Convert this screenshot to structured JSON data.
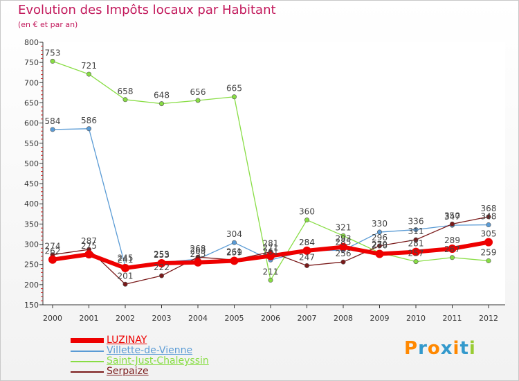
{
  "chart_data": {
    "type": "line",
    "title": "Evolution des Impôts locaux par Habitant",
    "subtitle": "(en € et par an)",
    "xlabel": "",
    "ylabel": "",
    "ylim": [
      150,
      800
    ],
    "yticks": [
      "150",
      "200",
      "250",
      "300",
      "350",
      "400",
      "450",
      "500",
      "550",
      "600",
      "650",
      "700",
      "750",
      "800"
    ],
    "categories": [
      "2000",
      "2001",
      "2002",
      "2003",
      "2004",
      "2005",
      "2006",
      "2007",
      "2008",
      "2009",
      "2010",
      "2011",
      "2012"
    ],
    "series": [
      {
        "name": "LUZINAY",
        "color": "#ee0000",
        "width": 6,
        "values": [
          262,
          275,
          241,
          253,
          255,
          259,
          271,
          284,
          293,
          276,
          281,
          289,
          305
        ],
        "labels": [
          "262",
          "275",
          "241",
          "253",
          "255",
          "259",
          "271",
          "284",
          "293",
          "276",
          "281",
          "289",
          "305"
        ]
      },
      {
        "name": "Villette-de-Vienne",
        "color": "#5a9bd5",
        "width": 1.3,
        "values": [
          584,
          586,
          245,
          255,
          263,
          304,
          261,
          284,
          285,
          330,
          336,
          347,
          348
        ],
        "labels": [
          "584",
          "586",
          "245",
          "255",
          "263",
          "304",
          "261",
          "284",
          "285",
          "330",
          "336",
          "347",
          "348"
        ]
      },
      {
        "name": "Saint-Just-Chaleyssin",
        "color": "#88dd44",
        "width": 1.3,
        "values": [
          753,
          721,
          658,
          648,
          656,
          665,
          211,
          360,
          321,
          279,
          257,
          267,
          259
        ],
        "labels": [
          "753",
          "721",
          "658",
          "648",
          "656",
          "665",
          "211",
          "360",
          "321",
          "279",
          "257",
          "267",
          "259"
        ]
      },
      {
        "name": "Serpaize",
        "color": "#7a1a1a",
        "width": 1.3,
        "values": [
          274,
          287,
          201,
          222,
          268,
          261,
          281,
          247,
          256,
          296,
          311,
          350,
          368
        ],
        "labels": [
          "274",
          "287",
          "201",
          "222",
          "268",
          "261",
          "281",
          "247",
          "256",
          "296",
          "311",
          "350",
          "368"
        ]
      }
    ],
    "legend": "bottom-left",
    "grid": false
  },
  "logo": {
    "text": "Proxiti",
    "letters": [
      "P",
      "r",
      "o",
      "x",
      "i",
      "t",
      "i"
    ],
    "colors": [
      "#ff8800",
      "#3399cc",
      "#ff8800",
      "#3399cc",
      "#ff8800",
      "#3399cc",
      "#99cc33"
    ]
  }
}
